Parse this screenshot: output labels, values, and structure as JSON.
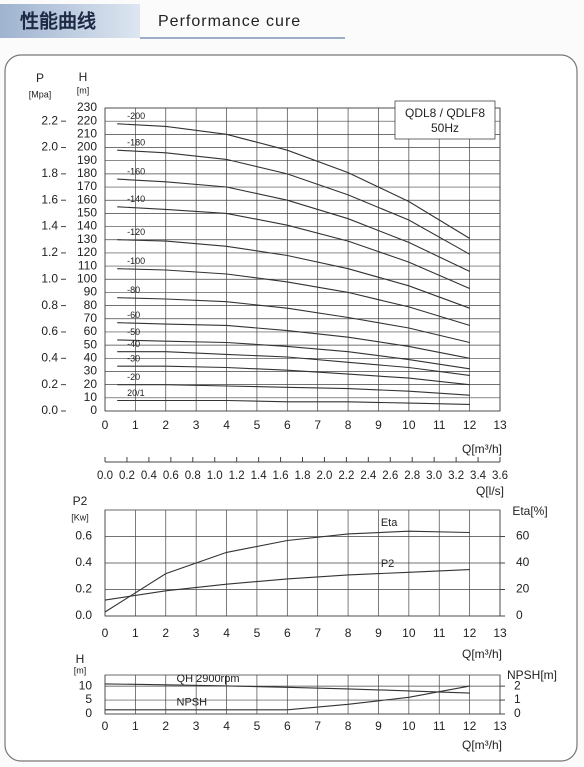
{
  "header": {
    "title_zh": "性能曲线",
    "title_en": "Performance cure"
  },
  "chart_data": [
    {
      "type": "line",
      "ylabel": "H",
      "yunit": "[m]",
      "y2label": "P",
      "y2unit": "[Mpa]",
      "xlabel": "Q[m³/h]",
      "x2label": "Q[l/s]",
      "annotations": [
        "QDL8 / QDLF8",
        "50Hz"
      ],
      "grid": true,
      "color": "#333333",
      "xlim": [
        0,
        13
      ],
      "xticks": [
        0,
        1,
        2,
        3,
        4,
        5,
        6,
        7,
        8,
        9,
        10,
        11,
        12,
        13
      ],
      "ylim": [
        0,
        230
      ],
      "yticks": [
        0,
        10,
        20,
        30,
        40,
        50,
        60,
        70,
        80,
        90,
        100,
        110,
        120,
        130,
        140,
        150,
        160,
        170,
        180,
        190,
        200,
        210,
        220,
        230
      ],
      "y2lim": [
        0,
        2.3
      ],
      "y2ticks": [
        {
          "value": 0,
          "label": "0.0"
        },
        0.2,
        0.4,
        0.6,
        0.8,
        {
          "value": 1,
          "label": "1.0"
        },
        1.2,
        1.4,
        1.6,
        1.8,
        {
          "value": 2,
          "label": "2.0"
        },
        2.2
      ],
      "x2lim": [
        0,
        3.6
      ],
      "x2ticks": [
        {
          "value": 0,
          "label": "0.0"
        },
        0.2,
        0.4,
        0.6,
        0.8,
        {
          "value": 1,
          "label": "1.0"
        },
        1.2,
        1.4,
        1.6,
        1.8,
        {
          "value": 2,
          "label": "2.0"
        },
        2.2,
        2.4,
        2.6,
        2.8,
        {
          "value": 3,
          "label": "3.0"
        },
        3.2,
        3.4,
        3.6
      ],
      "x": [
        0.4,
        2,
        4,
        6,
        8,
        10,
        12
      ],
      "series": [
        {
          "name": "-200",
          "values": [
            218,
            216,
            210,
            198,
            181,
            159,
            131
          ]
        },
        {
          "name": "-180",
          "values": [
            198,
            196,
            191,
            180,
            164,
            145,
            119
          ]
        },
        {
          "name": "-160",
          "values": [
            176,
            174,
            170,
            160,
            146,
            128,
            106
          ]
        },
        {
          "name": "-140",
          "values": [
            155,
            153,
            150,
            141,
            129,
            113,
            93
          ]
        },
        {
          "name": "-120",
          "values": [
            130,
            129,
            125,
            118,
            108,
            95,
            78
          ]
        },
        {
          "name": "-100",
          "values": [
            108,
            107,
            104,
            98,
            90,
            79,
            65
          ]
        },
        {
          "name": "-80",
          "values": [
            86,
            85,
            83,
            78,
            71,
            63,
            52
          ]
        },
        {
          "name": "-60",
          "values": [
            67,
            66,
            65,
            61,
            56,
            49,
            40
          ]
        },
        {
          "name": "-50",
          "values": [
            54,
            53,
            52,
            49,
            45,
            39,
            32
          ]
        },
        {
          "name": "-40",
          "values": [
            45,
            45,
            43,
            41,
            37,
            33,
            27
          ]
        },
        {
          "name": "-30",
          "values": [
            34,
            34,
            33,
            31,
            28,
            25,
            20
          ]
        },
        {
          "name": "-20",
          "values": [
            20,
            20,
            19,
            18,
            17,
            15,
            12
          ]
        },
        {
          "name": "20/1",
          "values": [
            8,
            8,
            8,
            7,
            7,
            6,
            5
          ]
        }
      ]
    },
    {
      "type": "line",
      "ylabel": "P2",
      "yunit": "[Kw]",
      "y2label": "Eta[%]",
      "xlabel": "Q[m³/h]",
      "grid": true,
      "color": "#333333",
      "xlim": [
        0,
        13
      ],
      "xticks": [
        0,
        1,
        2,
        3,
        4,
        5,
        6,
        7,
        8,
        9,
        10,
        11,
        12,
        13
      ],
      "ylim": [
        0,
        0.8
      ],
      "yticks": [
        {
          "value": 0,
          "label": "0.0"
        },
        0.2,
        0.4,
        0.6
      ],
      "y2lim": [
        0,
        80
      ],
      "y2ticks": [
        0,
        20,
        40,
        60
      ],
      "x": [
        0,
        2,
        4,
        6,
        8,
        10,
        12
      ],
      "series": [
        {
          "name": "Eta",
          "axis": "y2",
          "values": [
            3,
            32,
            48,
            57,
            62,
            64,
            63
          ]
        },
        {
          "name": "P2",
          "values": [
            0.12,
            0.19,
            0.24,
            0.28,
            0.31,
            0.33,
            0.35
          ]
        }
      ]
    },
    {
      "type": "line",
      "ylabel": "H",
      "yunit": "[m]",
      "y2label": "NPSH[m]",
      "xlabel": "Q[m³/h]",
      "grid": true,
      "color": "#333333",
      "xlim": [
        0,
        13
      ],
      "xticks": [
        0,
        1,
        2,
        3,
        4,
        5,
        6,
        7,
        8,
        9,
        10,
        11,
        12,
        13
      ],
      "ylim": [
        0,
        14
      ],
      "yticks": [
        0,
        5,
        10
      ],
      "y2lim": [
        0,
        2.8
      ],
      "y2ticks": [
        0,
        1,
        2
      ],
      "x": [
        0,
        2,
        4,
        6,
        8,
        10,
        12
      ],
      "series": [
        {
          "name": "QH 2900rpm",
          "values": [
            10.8,
            10.5,
            10.1,
            9.6,
            9.0,
            8.3,
            7.5
          ]
        },
        {
          "name": "NPSH",
          "axis": "y2",
          "values": [
            0.3,
            0.3,
            0.3,
            0.3,
            0.7,
            1.2,
            2.0
          ]
        }
      ]
    }
  ]
}
